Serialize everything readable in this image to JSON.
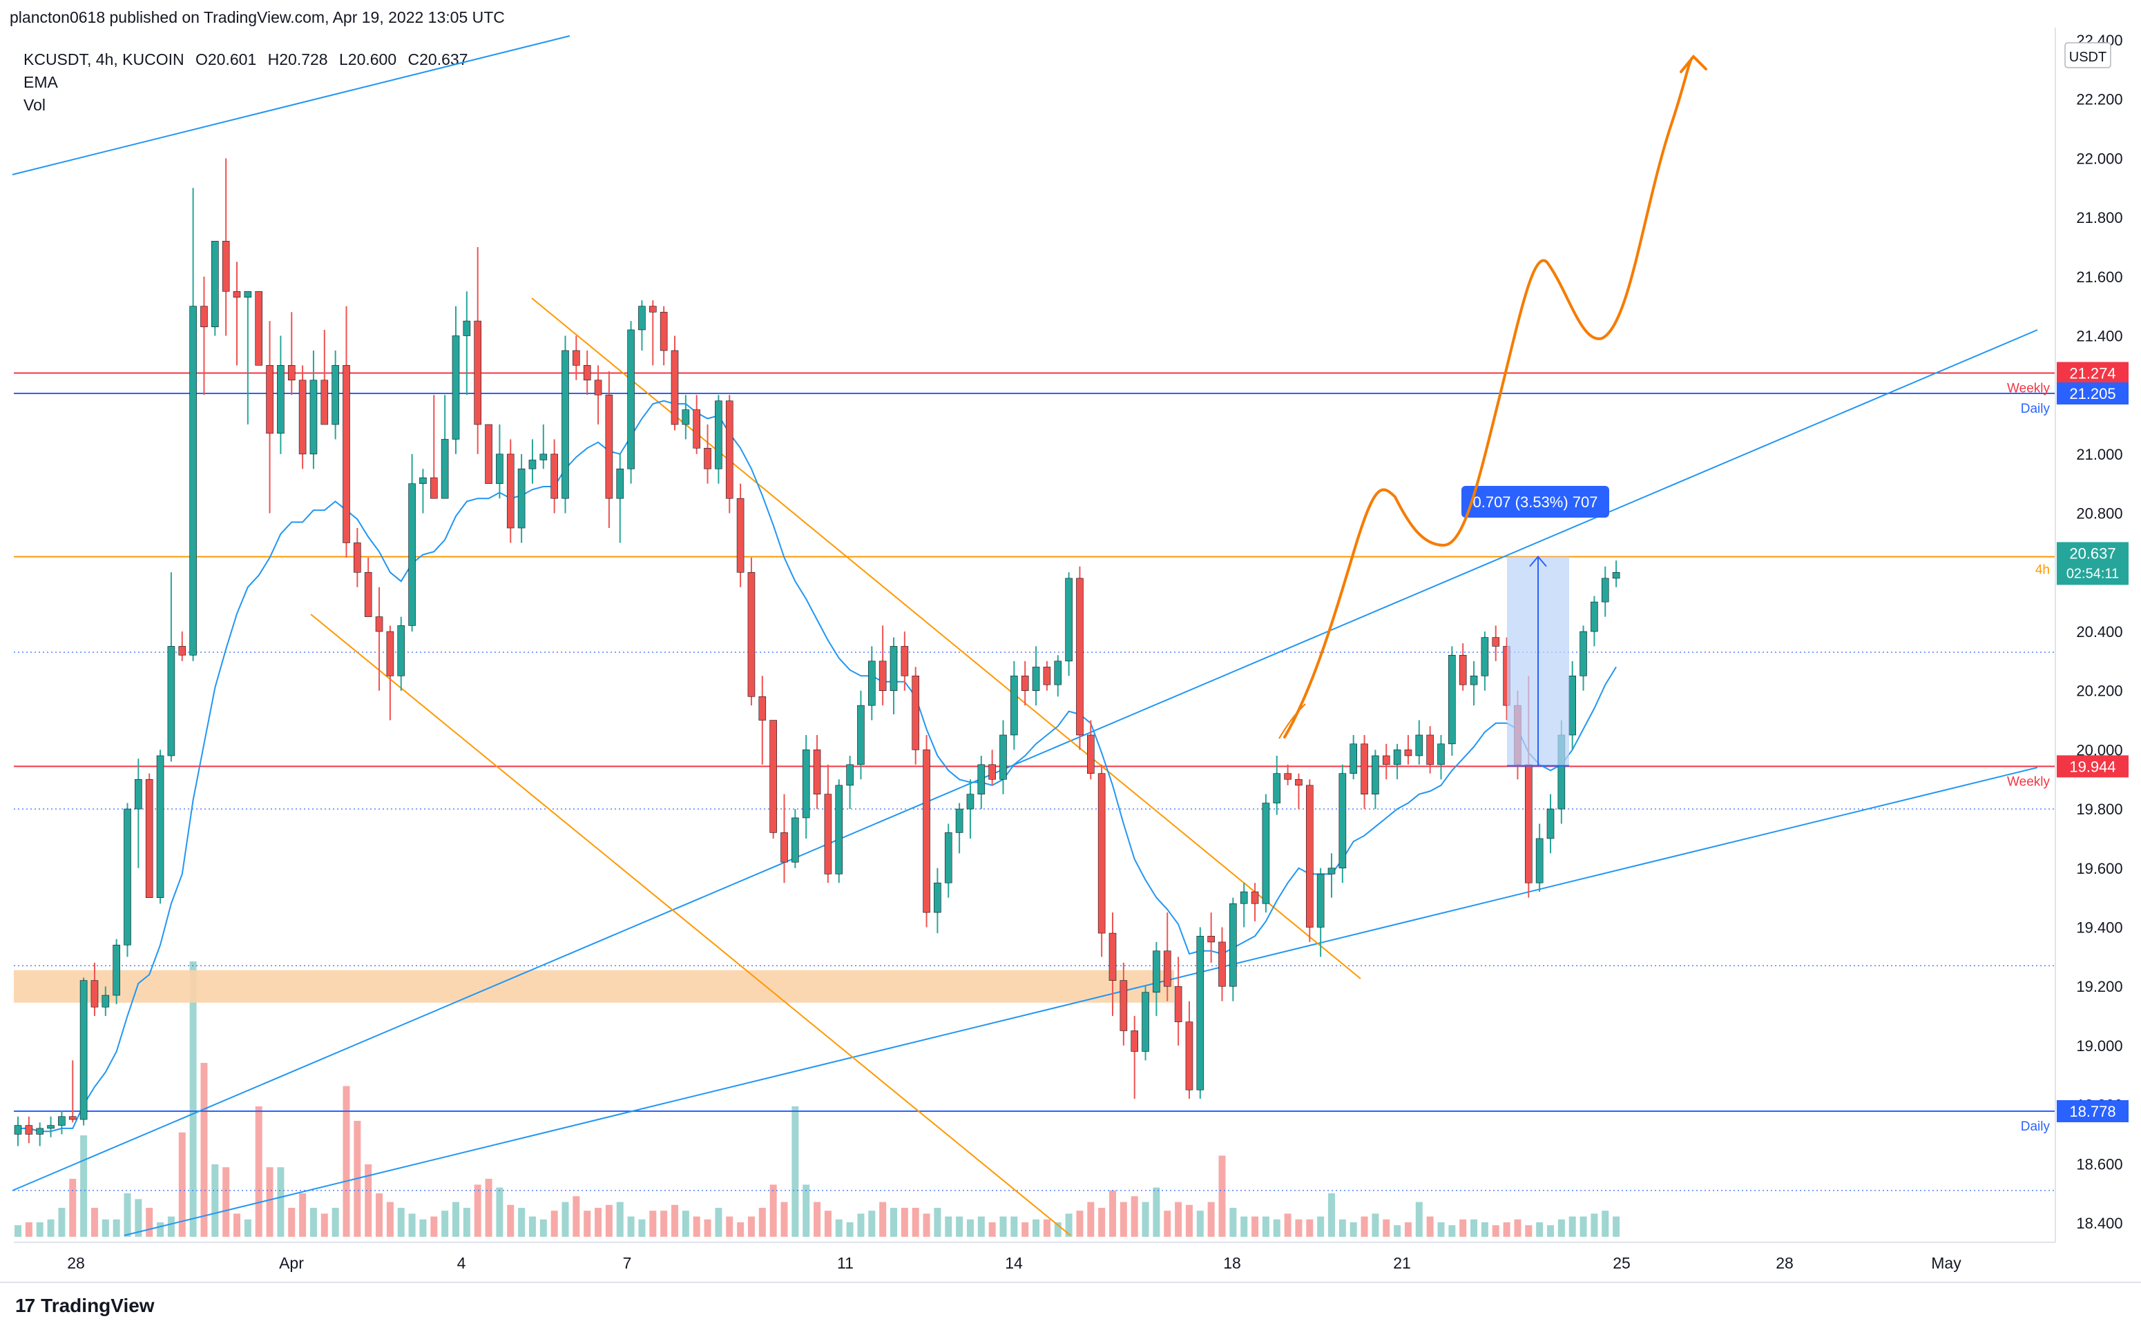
{
  "header": {
    "publisher": "plancton0618 published on TradingView.com, Apr 19, 2022 13:05 UTC"
  },
  "legend": {
    "symbol": "KCUSDT, 4h, KUCOIN",
    "open": "O20.601",
    "high": "H20.728",
    "low": "L20.600",
    "close": "C20.637",
    "indicator_ema": "EMA",
    "indicator_vol": "Vol"
  },
  "footer": {
    "brand": "TradingView",
    "logo_text": "17"
  },
  "colors": {
    "up": "#26a69a",
    "down": "#ef5350",
    "ema": "#2196f3",
    "orange": "#ff9800",
    "forecast": "#f57c00",
    "weekly_red": "#f23645",
    "daily_blue": "#2962ff",
    "zone": "#fbd3a8",
    "measure": "#bbd3f9"
  },
  "chart_data": {
    "type": "candlestick",
    "symbol": "KCUSDT",
    "interval": "4h",
    "exchange": "KUCOIN",
    "currency_label": "USDT",
    "ylim": [
      18.3,
      22.4
    ],
    "y_ticks": [
      "18.400",
      "18.600",
      "18.800",
      "19.000",
      "19.200",
      "19.400",
      "19.600",
      "19.800",
      "20.000",
      "20.200",
      "20.400",
      "20.600",
      "20.800",
      "21.000",
      "21.200",
      "21.400",
      "21.600",
      "21.800",
      "22.000",
      "22.200",
      "22.400"
    ],
    "x_ticks": [
      "28",
      "Apr",
      "4",
      "7",
      "11",
      "14",
      "18",
      "21",
      "25",
      "28",
      "May"
    ],
    "price_levels": [
      {
        "label": "21.274",
        "tag": "Weekly",
        "price": 21.274,
        "color": "#f23645"
      },
      {
        "label": "21.205",
        "tag": "Daily",
        "price": 21.205,
        "color": "#2962ff"
      },
      {
        "label": "20.653",
        "tag": "",
        "price": 20.653,
        "color": "#ff9800"
      },
      {
        "label": "20.637",
        "tag": "4h",
        "price": 20.637,
        "color": "#26a69a",
        "sublabel": "02:54:11"
      },
      {
        "label": "19.944",
        "tag": "Weekly",
        "price": 19.944,
        "color": "#f23645"
      },
      {
        "label": "18.778",
        "tag": "Daily",
        "price": 18.778,
        "color": "#2962ff"
      }
    ],
    "dotted_levels": [
      20.33,
      19.8,
      19.27,
      18.51
    ],
    "measure_label": "0.707 (3.53%) 707",
    "candles": [
      {
        "o": 18.7,
        "h": 18.76,
        "l": 18.66,
        "c": 18.73
      },
      {
        "o": 18.73,
        "h": 18.76,
        "l": 18.67,
        "c": 18.7
      },
      {
        "o": 18.7,
        "h": 18.74,
        "l": 18.66,
        "c": 18.72
      },
      {
        "o": 18.72,
        "h": 18.76,
        "l": 18.69,
        "c": 18.73
      },
      {
        "o": 18.73,
        "h": 18.78,
        "l": 18.7,
        "c": 18.76
      },
      {
        "o": 18.76,
        "h": 18.95,
        "l": 18.74,
        "c": 18.75
      },
      {
        "o": 18.75,
        "h": 19.23,
        "l": 18.73,
        "c": 19.22
      },
      {
        "o": 19.22,
        "h": 19.28,
        "l": 19.1,
        "c": 19.13
      },
      {
        "o": 19.13,
        "h": 19.2,
        "l": 19.1,
        "c": 19.17
      },
      {
        "o": 19.17,
        "h": 19.36,
        "l": 19.14,
        "c": 19.34
      },
      {
        "o": 19.34,
        "h": 19.82,
        "l": 19.3,
        "c": 19.8
      },
      {
        "o": 19.8,
        "h": 19.97,
        "l": 19.6,
        "c": 19.9
      },
      {
        "o": 19.9,
        "h": 19.92,
        "l": 19.5,
        "c": 19.5
      },
      {
        "o": 19.5,
        "h": 20.0,
        "l": 19.48,
        "c": 19.98
      },
      {
        "o": 19.98,
        "h": 20.6,
        "l": 19.96,
        "c": 20.35
      },
      {
        "o": 20.35,
        "h": 20.4,
        "l": 20.3,
        "c": 20.32
      },
      {
        "o": 20.32,
        "h": 21.9,
        "l": 20.3,
        "c": 21.5
      },
      {
        "o": 21.5,
        "h": 21.6,
        "l": 21.2,
        "c": 21.43
      },
      {
        "o": 21.43,
        "h": 21.72,
        "l": 21.4,
        "c": 21.72
      },
      {
        "o": 21.72,
        "h": 22.0,
        "l": 21.4,
        "c": 21.55
      },
      {
        "o": 21.55,
        "h": 21.65,
        "l": 21.3,
        "c": 21.53
      },
      {
        "o": 21.53,
        "h": 21.55,
        "l": 21.1,
        "c": 21.55
      },
      {
        "o": 21.55,
        "h": 21.55,
        "l": 21.3,
        "c": 21.3
      },
      {
        "o": 21.3,
        "h": 21.45,
        "l": 20.8,
        "c": 21.07
      },
      {
        "o": 21.07,
        "h": 21.4,
        "l": 21.0,
        "c": 21.3
      },
      {
        "o": 21.3,
        "h": 21.48,
        "l": 21.2,
        "c": 21.25
      },
      {
        "o": 21.25,
        "h": 21.3,
        "l": 20.95,
        "c": 21.0
      },
      {
        "o": 21.0,
        "h": 21.35,
        "l": 20.95,
        "c": 21.25
      },
      {
        "o": 21.25,
        "h": 21.42,
        "l": 21.1,
        "c": 21.1
      },
      {
        "o": 21.1,
        "h": 21.35,
        "l": 21.05,
        "c": 21.3
      },
      {
        "o": 21.3,
        "h": 21.5,
        "l": 20.65,
        "c": 20.7
      },
      {
        "o": 20.7,
        "h": 20.75,
        "l": 20.55,
        "c": 20.6
      },
      {
        "o": 20.6,
        "h": 20.65,
        "l": 20.45,
        "c": 20.45
      },
      {
        "o": 20.45,
        "h": 20.55,
        "l": 20.2,
        "c": 20.4
      },
      {
        "o": 20.4,
        "h": 20.42,
        "l": 20.1,
        "c": 20.25
      },
      {
        "o": 20.25,
        "h": 20.45,
        "l": 20.2,
        "c": 20.42
      },
      {
        "o": 20.42,
        "h": 21.0,
        "l": 20.4,
        "c": 20.9
      },
      {
        "o": 20.9,
        "h": 20.95,
        "l": 20.8,
        "c": 20.92
      },
      {
        "o": 20.92,
        "h": 21.2,
        "l": 20.85,
        "c": 20.85
      },
      {
        "o": 20.85,
        "h": 21.2,
        "l": 20.85,
        "c": 21.05
      },
      {
        "o": 21.05,
        "h": 21.5,
        "l": 21.0,
        "c": 21.4
      },
      {
        "o": 21.4,
        "h": 21.55,
        "l": 21.2,
        "c": 21.45
      },
      {
        "o": 21.45,
        "h": 21.7,
        "l": 21.0,
        "c": 21.1
      },
      {
        "o": 21.1,
        "h": 21.1,
        "l": 20.9,
        "c": 20.9
      },
      {
        "o": 20.9,
        "h": 21.1,
        "l": 20.85,
        "c": 21.0
      },
      {
        "o": 21.0,
        "h": 21.05,
        "l": 20.7,
        "c": 20.75
      },
      {
        "o": 20.75,
        "h": 21.0,
        "l": 20.7,
        "c": 20.95
      },
      {
        "o": 20.95,
        "h": 21.05,
        "l": 20.9,
        "c": 20.98
      },
      {
        "o": 20.98,
        "h": 21.1,
        "l": 20.95,
        "c": 21.0
      },
      {
        "o": 21.0,
        "h": 21.05,
        "l": 20.8,
        "c": 20.85
      },
      {
        "o": 20.85,
        "h": 21.4,
        "l": 20.8,
        "c": 21.35
      },
      {
        "o": 21.35,
        "h": 21.4,
        "l": 21.25,
        "c": 21.3
      },
      {
        "o": 21.3,
        "h": 21.35,
        "l": 21.2,
        "c": 21.25
      },
      {
        "o": 21.25,
        "h": 21.3,
        "l": 21.1,
        "c": 21.2
      },
      {
        "o": 21.2,
        "h": 21.28,
        "l": 20.75,
        "c": 20.85
      },
      {
        "o": 20.85,
        "h": 21.0,
        "l": 20.7,
        "c": 20.95
      },
      {
        "o": 20.95,
        "h": 21.45,
        "l": 20.9,
        "c": 21.42
      },
      {
        "o": 21.42,
        "h": 21.52,
        "l": 21.35,
        "c": 21.5
      },
      {
        "o": 21.5,
        "h": 21.52,
        "l": 21.3,
        "c": 21.48
      },
      {
        "o": 21.48,
        "h": 21.5,
        "l": 21.3,
        "c": 21.35
      },
      {
        "o": 21.35,
        "h": 21.4,
        "l": 21.08,
        "c": 21.1
      },
      {
        "o": 21.1,
        "h": 21.2,
        "l": 21.05,
        "c": 21.15
      },
      {
        "o": 21.15,
        "h": 21.2,
        "l": 21.0,
        "c": 21.02
      },
      {
        "o": 21.02,
        "h": 21.1,
        "l": 20.9,
        "c": 20.95
      },
      {
        "o": 20.95,
        "h": 21.2,
        "l": 20.9,
        "c": 21.18
      },
      {
        "o": 21.18,
        "h": 21.2,
        "l": 20.8,
        "c": 20.85
      },
      {
        "o": 20.85,
        "h": 20.9,
        "l": 20.55,
        "c": 20.6
      },
      {
        "o": 20.6,
        "h": 20.65,
        "l": 20.15,
        "c": 20.18
      },
      {
        "o": 20.18,
        "h": 20.25,
        "l": 19.95,
        "c": 20.1
      },
      {
        "o": 20.1,
        "h": 20.1,
        "l": 19.7,
        "c": 19.72
      },
      {
        "o": 19.72,
        "h": 19.85,
        "l": 19.55,
        "c": 19.62
      },
      {
        "o": 19.62,
        "h": 19.8,
        "l": 19.6,
        "c": 19.77
      },
      {
        "o": 19.77,
        "h": 20.05,
        "l": 19.7,
        "c": 20.0
      },
      {
        "o": 20.0,
        "h": 20.05,
        "l": 19.8,
        "c": 19.85
      },
      {
        "o": 19.85,
        "h": 19.95,
        "l": 19.55,
        "c": 19.58
      },
      {
        "o": 19.58,
        "h": 19.9,
        "l": 19.55,
        "c": 19.88
      },
      {
        "o": 19.88,
        "h": 19.98,
        "l": 19.8,
        "c": 19.95
      },
      {
        "o": 19.95,
        "h": 20.2,
        "l": 19.9,
        "c": 20.15
      },
      {
        "o": 20.15,
        "h": 20.35,
        "l": 20.1,
        "c": 20.3
      },
      {
        "o": 20.3,
        "h": 20.42,
        "l": 20.15,
        "c": 20.2
      },
      {
        "o": 20.2,
        "h": 20.38,
        "l": 20.12,
        "c": 20.35
      },
      {
        "o": 20.35,
        "h": 20.4,
        "l": 20.2,
        "c": 20.25
      },
      {
        "o": 20.25,
        "h": 20.28,
        "l": 19.95,
        "c": 20.0
      },
      {
        "o": 20.0,
        "h": 20.05,
        "l": 19.4,
        "c": 19.45
      },
      {
        "o": 19.45,
        "h": 19.6,
        "l": 19.38,
        "c": 19.55
      },
      {
        "o": 19.55,
        "h": 19.75,
        "l": 19.5,
        "c": 19.72
      },
      {
        "o": 19.72,
        "h": 19.82,
        "l": 19.65,
        "c": 19.8
      },
      {
        "o": 19.8,
        "h": 19.9,
        "l": 19.7,
        "c": 19.85
      },
      {
        "o": 19.85,
        "h": 19.98,
        "l": 19.8,
        "c": 19.95
      },
      {
        "o": 19.95,
        "h": 20.0,
        "l": 19.88,
        "c": 19.9
      },
      {
        "o": 19.9,
        "h": 20.1,
        "l": 19.85,
        "c": 20.05
      },
      {
        "o": 20.05,
        "h": 20.3,
        "l": 20.0,
        "c": 20.25
      },
      {
        "o": 20.25,
        "h": 20.3,
        "l": 20.15,
        "c": 20.2
      },
      {
        "o": 20.2,
        "h": 20.35,
        "l": 20.15,
        "c": 20.28
      },
      {
        "o": 20.28,
        "h": 20.3,
        "l": 20.2,
        "c": 20.22
      },
      {
        "o": 20.22,
        "h": 20.32,
        "l": 20.18,
        "c": 20.3
      },
      {
        "o": 20.3,
        "h": 20.6,
        "l": 20.25,
        "c": 20.58
      },
      {
        "o": 20.58,
        "h": 20.62,
        "l": 20.0,
        "c": 20.05
      },
      {
        "o": 20.05,
        "h": 20.1,
        "l": 19.9,
        "c": 19.92
      },
      {
        "o": 19.92,
        "h": 19.95,
        "l": 19.3,
        "c": 19.38
      },
      {
        "o": 19.38,
        "h": 19.45,
        "l": 19.1,
        "c": 19.22
      },
      {
        "o": 19.22,
        "h": 19.28,
        "l": 19.0,
        "c": 19.05
      },
      {
        "o": 19.05,
        "h": 19.1,
        "l": 18.82,
        "c": 18.98
      },
      {
        "o": 18.98,
        "h": 19.2,
        "l": 18.95,
        "c": 19.18
      },
      {
        "o": 19.18,
        "h": 19.35,
        "l": 19.1,
        "c": 19.32
      },
      {
        "o": 19.32,
        "h": 19.45,
        "l": 19.15,
        "c": 19.2
      },
      {
        "o": 19.2,
        "h": 19.3,
        "l": 19.0,
        "c": 19.08
      },
      {
        "o": 19.08,
        "h": 19.15,
        "l": 18.82,
        "c": 18.85
      },
      {
        "o": 18.85,
        "h": 19.4,
        "l": 18.82,
        "c": 19.37
      },
      {
        "o": 19.37,
        "h": 19.45,
        "l": 19.28,
        "c": 19.35
      },
      {
        "o": 19.35,
        "h": 19.4,
        "l": 19.15,
        "c": 19.2
      },
      {
        "o": 19.2,
        "h": 19.5,
        "l": 19.15,
        "c": 19.48
      },
      {
        "o": 19.48,
        "h": 19.55,
        "l": 19.4,
        "c": 19.52
      },
      {
        "o": 19.52,
        "h": 19.55,
        "l": 19.42,
        "c": 19.48
      },
      {
        "o": 19.48,
        "h": 19.85,
        "l": 19.45,
        "c": 19.82
      },
      {
        "o": 19.82,
        "h": 19.98,
        "l": 19.78,
        "c": 19.92
      },
      {
        "o": 19.92,
        "h": 19.95,
        "l": 19.88,
        "c": 19.9
      },
      {
        "o": 19.9,
        "h": 19.92,
        "l": 19.8,
        "c": 19.88
      },
      {
        "o": 19.88,
        "h": 19.9,
        "l": 19.35,
        "c": 19.4
      },
      {
        "o": 19.4,
        "h": 19.6,
        "l": 19.3,
        "c": 19.58
      },
      {
        "o": 19.58,
        "h": 19.65,
        "l": 19.5,
        "c": 19.6
      },
      {
        "o": 19.6,
        "h": 19.95,
        "l": 19.55,
        "c": 19.92
      },
      {
        "o": 19.92,
        "h": 20.05,
        "l": 19.9,
        "c": 20.02
      },
      {
        "o": 20.02,
        "h": 20.05,
        "l": 19.8,
        "c": 19.85
      },
      {
        "o": 19.85,
        "h": 20.0,
        "l": 19.8,
        "c": 19.98
      },
      {
        "o": 19.98,
        "h": 20.02,
        "l": 19.9,
        "c": 19.95
      },
      {
        "o": 19.95,
        "h": 20.02,
        "l": 19.9,
        "c": 20.0
      },
      {
        "o": 20.0,
        "h": 20.05,
        "l": 19.95,
        "c": 19.98
      },
      {
        "o": 19.98,
        "h": 20.1,
        "l": 19.95,
        "c": 20.05
      },
      {
        "o": 20.05,
        "h": 20.08,
        "l": 19.92,
        "c": 19.95
      },
      {
        "o": 19.95,
        "h": 20.05,
        "l": 19.9,
        "c": 20.02
      },
      {
        "o": 20.02,
        "h": 20.35,
        "l": 19.98,
        "c": 20.32
      },
      {
        "o": 20.32,
        "h": 20.36,
        "l": 20.2,
        "c": 20.22
      },
      {
        "o": 20.22,
        "h": 20.3,
        "l": 20.15,
        "c": 20.25
      },
      {
        "o": 20.25,
        "h": 20.4,
        "l": 20.2,
        "c": 20.38
      },
      {
        "o": 20.38,
        "h": 20.42,
        "l": 20.3,
        "c": 20.35
      },
      {
        "o": 20.35,
        "h": 20.38,
        "l": 20.1,
        "c": 20.15
      },
      {
        "o": 20.15,
        "h": 20.2,
        "l": 19.9,
        "c": 19.95
      },
      {
        "o": 19.95,
        "h": 20.25,
        "l": 19.5,
        "c": 19.55
      },
      {
        "o": 19.55,
        "h": 19.75,
        "l": 19.52,
        "c": 19.7
      },
      {
        "o": 19.7,
        "h": 19.85,
        "l": 19.65,
        "c": 19.8
      },
      {
        "o": 19.8,
        "h": 20.1,
        "l": 19.75,
        "c": 20.05
      },
      {
        "o": 20.05,
        "h": 20.3,
        "l": 20.0,
        "c": 20.25
      },
      {
        "o": 20.25,
        "h": 20.42,
        "l": 20.2,
        "c": 20.4
      },
      {
        "o": 20.4,
        "h": 20.52,
        "l": 20.35,
        "c": 20.5
      },
      {
        "o": 20.5,
        "h": 20.62,
        "l": 20.45,
        "c": 20.58
      },
      {
        "o": 20.58,
        "h": 20.64,
        "l": 20.55,
        "c": 20.6
      }
    ],
    "ema": [
      18.72,
      18.72,
      18.71,
      18.71,
      18.72,
      18.72,
      18.8,
      18.86,
      18.91,
      18.98,
      19.1,
      19.21,
      19.24,
      19.34,
      19.48,
      19.58,
      19.83,
      20.02,
      20.21,
      20.34,
      20.46,
      20.55,
      20.59,
      20.65,
      20.73,
      20.77,
      20.77,
      20.81,
      20.81,
      20.84,
      20.81,
      20.78,
      20.72,
      20.67,
      20.6,
      20.57,
      20.63,
      20.66,
      20.67,
      20.71,
      20.79,
      20.84,
      20.85,
      20.85,
      20.87,
      20.85,
      20.86,
      20.88,
      20.89,
      20.89,
      20.95,
      20.99,
      21.02,
      21.04,
      21.01,
      21.0,
      21.06,
      21.12,
      21.17,
      21.18,
      21.17,
      21.17,
      21.14,
      21.12,
      21.13,
      21.07,
      21.02,
      20.95,
      20.86,
      20.76,
      20.65,
      20.57,
      20.51,
      20.44,
      20.37,
      20.31,
      20.27,
      20.25,
      20.25,
      20.23,
      20.23,
      20.23,
      20.18,
      20.07,
      19.98,
      19.93,
      19.9,
      19.89,
      19.89,
      19.88,
      19.9,
      19.95,
      19.98,
      20.02,
      20.05,
      20.08,
      20.13,
      20.12,
      20.09,
      19.99,
      19.88,
      19.75,
      19.63,
      19.56,
      19.5,
      19.46,
      19.41,
      19.31,
      19.32,
      19.32,
      19.31,
      19.33,
      19.35,
      19.37,
      19.42,
      19.49,
      19.55,
      19.6,
      19.58,
      19.58,
      19.58,
      19.63,
      19.69,
      19.71,
      19.74,
      19.77,
      19.8,
      19.82,
      19.85,
      19.86,
      19.88,
      19.93,
      19.97,
      20.01,
      20.06,
      20.09,
      20.09,
      20.07,
      19.99,
      19.95,
      19.93,
      19.95,
      20.0,
      20.07,
      20.14,
      20.22,
      20.28
    ],
    "volume": [
      0.04,
      0.05,
      0.05,
      0.06,
      0.1,
      0.2,
      0.35,
      0.1,
      0.06,
      0.06,
      0.15,
      0.13,
      0.1,
      0.05,
      0.07,
      0.36,
      0.95,
      0.6,
      0.25,
      0.24,
      0.08,
      0.06,
      0.45,
      0.24,
      0.24,
      0.1,
      0.15,
      0.1,
      0.08,
      0.1,
      0.52,
      0.4,
      0.25,
      0.15,
      0.12,
      0.1,
      0.08,
      0.06,
      0.07,
      0.09,
      0.12,
      0.1,
      0.18,
      0.2,
      0.17,
      0.11,
      0.1,
      0.07,
      0.06,
      0.09,
      0.12,
      0.14,
      0.09,
      0.1,
      0.11,
      0.12,
      0.07,
      0.06,
      0.09,
      0.09,
      0.11,
      0.09,
      0.07,
      0.06,
      0.1,
      0.07,
      0.05,
      0.07,
      0.1,
      0.18,
      0.12,
      0.45,
      0.18,
      0.12,
      0.09,
      0.06,
      0.05,
      0.08,
      0.09,
      0.12,
      0.1,
      0.1,
      0.1,
      0.08,
      0.1,
      0.07,
      0.07,
      0.06,
      0.07,
      0.05,
      0.07,
      0.07,
      0.05,
      0.06,
      0.06,
      0.05,
      0.08,
      0.09,
      0.12,
      0.1,
      0.16,
      0.12,
      0.14,
      0.12,
      0.17,
      0.09,
      0.12,
      0.11,
      0.09,
      0.12,
      0.28,
      0.1,
      0.07,
      0.07,
      0.07,
      0.06,
      0.08,
      0.06,
      0.06,
      0.07,
      0.15,
      0.06,
      0.05,
      0.07,
      0.08,
      0.06,
      0.04,
      0.05,
      0.12,
      0.07,
      0.05,
      0.04,
      0.06,
      0.06,
      0.05,
      0.04,
      0.05,
      0.06,
      0.04,
      0.05,
      0.04,
      0.06,
      0.07,
      0.07,
      0.08,
      0.09,
      0.07,
      0.06,
      0.07,
      0.07,
      0.06,
      0.05
    ],
    "volume_ylim": [
      0,
      1.0
    ]
  }
}
